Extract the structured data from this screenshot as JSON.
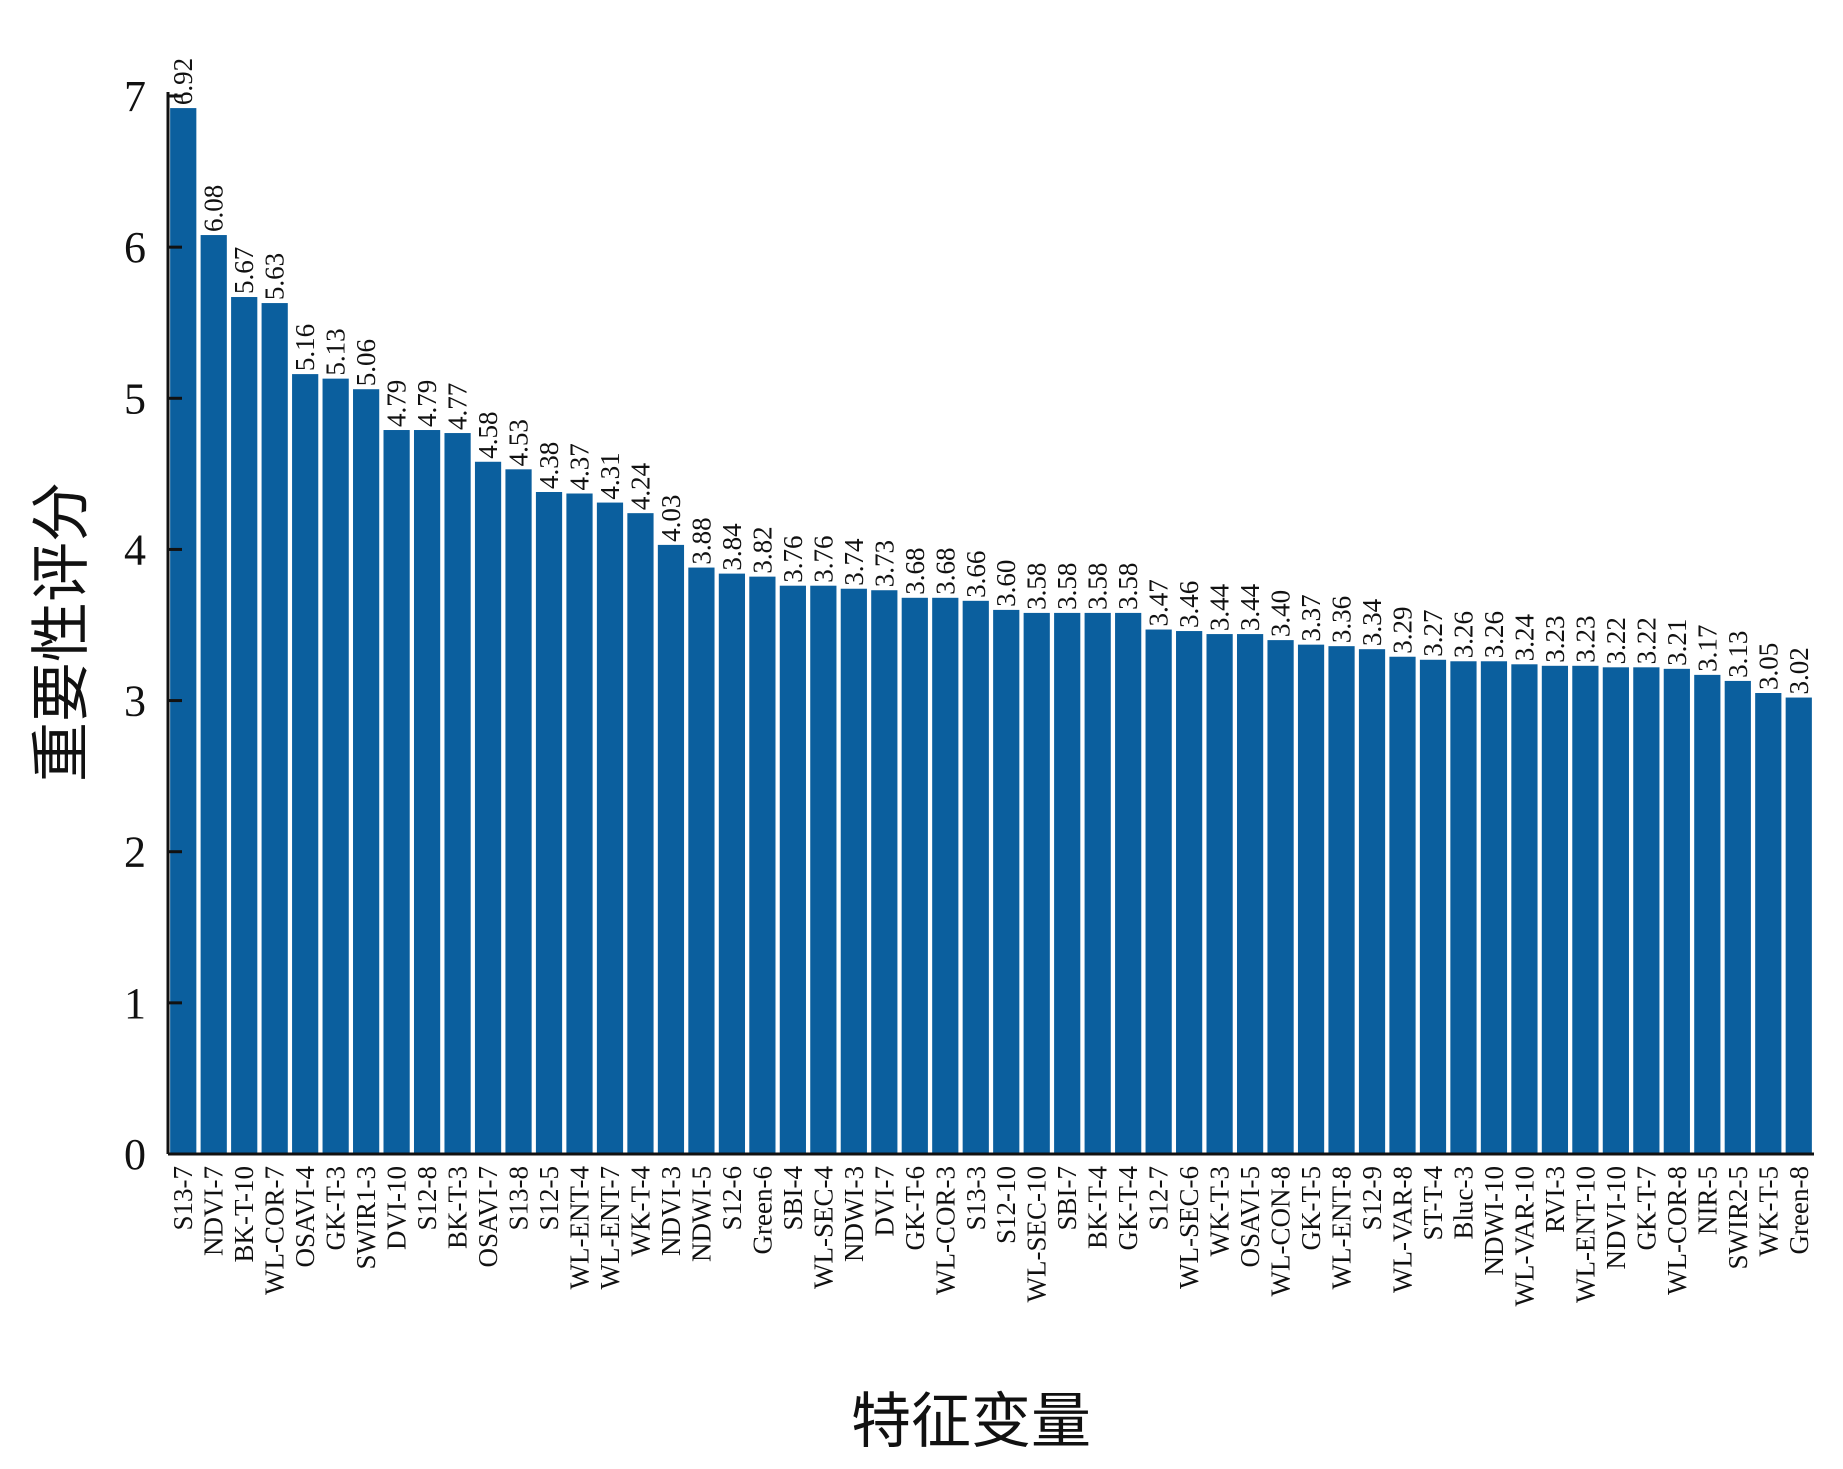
{
  "chart_data": {
    "type": "bar",
    "xlabel": "特征变量",
    "ylabel": "重要性评分",
    "ylim": [
      0,
      7
    ],
    "yticks": [
      0,
      1,
      2,
      3,
      4,
      5,
      6,
      7
    ],
    "grid": false,
    "legend": "none",
    "bar_color": "#0b5f9e",
    "categories": [
      "S13-7",
      "NDVI-7",
      "BK-T-10",
      "WL-COR-7",
      "OSAVI-4",
      "GK-T-3",
      "SWIR1-3",
      "DVI-10",
      "S12-8",
      "BK-T-3",
      "OSAVI-7",
      "S13-8",
      "S12-5",
      "WL-ENT-4",
      "WL-ENT-7",
      "WK-T-4",
      "NDVI-3",
      "NDWI-5",
      "S12-6",
      "Green-6",
      "SBI-4",
      "WL-SEC-4",
      "NDWI-3",
      "DVI-7",
      "GK-T-6",
      "WL-COR-3",
      "S13-3",
      "S12-10",
      "WL-SEC-10",
      "SBI-7",
      "BK-T-4",
      "GK-T-4",
      "S12-7",
      "WL-SEC-6",
      "WK-T-3",
      "OSAVI-5",
      "WL-CON-8",
      "GK-T-5",
      "WL-ENT-8",
      "S12-9",
      "WL-VAR-8",
      "ST-T-4",
      "Bluc-3",
      "NDWI-10",
      "WL-VAR-10",
      "RVI-3",
      "WL-ENT-10",
      "NDVI-10",
      "GK-T-7",
      "WL-COR-8",
      "NIR-5",
      "SWIR2-5",
      "WK-T-5",
      "Green-8"
    ],
    "values": [
      6.92,
      6.08,
      5.67,
      5.63,
      5.16,
      5.13,
      5.06,
      4.79,
      4.79,
      4.77,
      4.58,
      4.53,
      4.38,
      4.37,
      4.31,
      4.24,
      4.03,
      3.88,
      3.84,
      3.82,
      3.76,
      3.76,
      3.74,
      3.73,
      3.68,
      3.68,
      3.66,
      3.6,
      3.58,
      3.58,
      3.58,
      3.58,
      3.47,
      3.46,
      3.44,
      3.44,
      3.4,
      3.37,
      3.36,
      3.34,
      3.29,
      3.27,
      3.26,
      3.26,
      3.24,
      3.23,
      3.23,
      3.22,
      3.22,
      3.21,
      3.17,
      3.13,
      3.05,
      3.02
    ],
    "value_labels": [
      "6.92",
      "6.08",
      "5.67",
      "5.63",
      "5.16",
      "5.13",
      "5.06",
      "4.79",
      "4.79",
      "4.77",
      "4.58",
      "4.53",
      "4.38",
      "4.37",
      "4.31",
      "4.24",
      "4.03",
      "3.88",
      "3.84",
      "3.82",
      "3.76",
      "3.76",
      "3.74",
      "3.73",
      "3.68",
      "3.68",
      "3.66",
      "3.60",
      "3.58",
      "3.58",
      "3.58",
      "3.58",
      "3.47",
      "3.46",
      "3.44",
      "3.44",
      "3.40",
      "3.37",
      "3.36",
      "3.34",
      "3.29",
      "3.27",
      "3.26",
      "3.26",
      "3.24",
      "3.23",
      "3.23",
      "3.22",
      "3.22",
      "3.21",
      "3.17",
      "3.13",
      "3.05",
      "3.02"
    ]
  }
}
